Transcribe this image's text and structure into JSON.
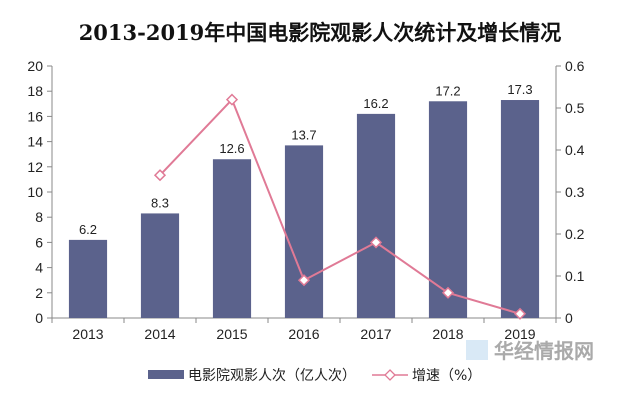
{
  "chart_data": {
    "type": "bar",
    "title": "2013-2019年中国电影院观影人次统计及增长情况",
    "categories": [
      "2013",
      "2014",
      "2015",
      "2016",
      "2017",
      "2018",
      "2019"
    ],
    "series": [
      {
        "name": "电影院观影人次（亿人次）",
        "type": "bar",
        "axis": "left",
        "values": [
          6.2,
          8.3,
          12.6,
          13.7,
          16.2,
          17.2,
          17.3
        ],
        "labels": [
          "6.2",
          "8.3",
          "12.6",
          "13.7",
          "16.2",
          "17.2",
          "17.3"
        ]
      },
      {
        "name": "增速（%）",
        "type": "line",
        "axis": "right",
        "values": [
          null,
          0.34,
          0.52,
          0.09,
          0.18,
          0.06,
          0.01
        ]
      }
    ],
    "ylim_left": [
      0,
      20
    ],
    "yticks_left": [
      "0",
      "2",
      "4",
      "6",
      "8",
      "10",
      "12",
      "14",
      "16",
      "18",
      "20"
    ],
    "ylim_right": [
      0,
      0.6
    ],
    "yticks_right": [
      "0",
      "0.1",
      "0.2",
      "0.3",
      "0.4",
      "0.5",
      "0.6"
    ],
    "grid": false,
    "legend_position": "bottom",
    "colors": {
      "bar": "#5b628c",
      "line": "#e07a96",
      "marker_fill": "#ffffff",
      "axis": "#888888"
    }
  },
  "watermark": {
    "text": "华经情报网"
  }
}
